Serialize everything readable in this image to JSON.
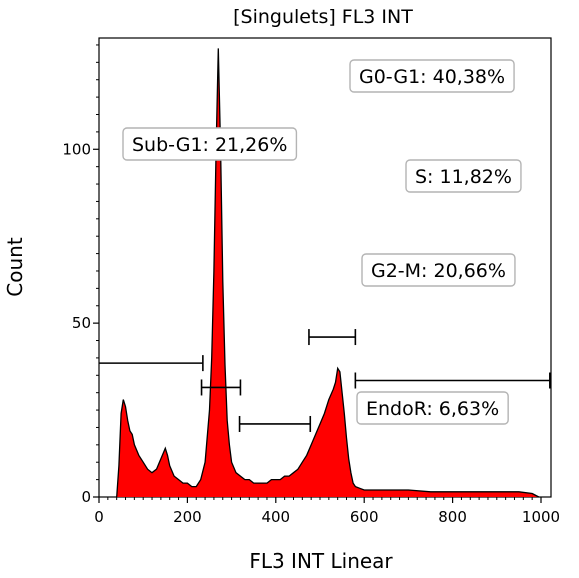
{
  "chart_data": {
    "type": "area",
    "title": "[Singulets] FL3 INT",
    "xlabel": "FL3 INT Linear",
    "ylabel": "Count",
    "xlim": [
      0,
      1000
    ],
    "ylim": [
      0,
      132
    ],
    "x_ticks": [
      0,
      200,
      400,
      600,
      800,
      1000
    ],
    "y_ticks": [
      0,
      50,
      100
    ],
    "fill_color": "#ff0000",
    "line_color": "#000000",
    "grid": false,
    "legend": "none",
    "series": [
      {
        "x": [
          40,
          45,
          50,
          55,
          60,
          65,
          70,
          75,
          80,
          90,
          100,
          110,
          120,
          130,
          140,
          150,
          155,
          160,
          170,
          180,
          190,
          200,
          210,
          220,
          230,
          240,
          250,
          255,
          260,
          265,
          270,
          275,
          280,
          285,
          290,
          295,
          300,
          310,
          320,
          330,
          340,
          350,
          360,
          370,
          380,
          390,
          400,
          410,
          420,
          430,
          440,
          450,
          460,
          470,
          480,
          490,
          500,
          510,
          520,
          530,
          535,
          540,
          545,
          550,
          555,
          560,
          565,
          570,
          575,
          580,
          590,
          600,
          620,
          650,
          700,
          750,
          800,
          850,
          900,
          950,
          980,
          995
        ],
        "y": [
          0,
          9,
          24,
          28,
          26,
          22,
          19,
          18,
          15,
          12,
          10,
          8,
          7,
          8,
          11,
          14,
          12,
          9,
          6,
          5,
          4,
          4,
          3,
          3,
          5,
          10,
          25,
          40,
          65,
          100,
          129,
          100,
          62,
          38,
          22,
          15,
          10,
          7,
          6,
          5,
          5,
          4,
          4,
          4,
          4,
          5,
          5,
          5,
          6,
          6,
          7,
          8,
          10,
          12,
          15,
          18,
          21,
          24,
          28,
          31,
          33,
          37,
          36,
          30,
          24,
          17,
          11,
          7,
          4,
          3,
          2.5,
          2,
          2,
          2,
          2,
          1.5,
          1.5,
          1.5,
          1.5,
          1.5,
          1,
          0
        ]
      }
    ],
    "gates": [
      {
        "label": "Sub-G1: 21,26%",
        "range": [
          0,
          235
        ],
        "y": 38.5
      },
      {
        "label": "G0-G1: 40,38%",
        "range": [
          232,
          320
        ],
        "y": 31.5
      },
      {
        "label": "S: 11,82%",
        "range": [
          318,
          478
        ],
        "y": 21
      },
      {
        "label": "G2-M: 20,66%",
        "range": [
          475,
          580
        ],
        "y": 46
      },
      {
        "label": "EndoR: 6,63%",
        "range": [
          580,
          1020
        ],
        "y": 33.5
      }
    ]
  }
}
